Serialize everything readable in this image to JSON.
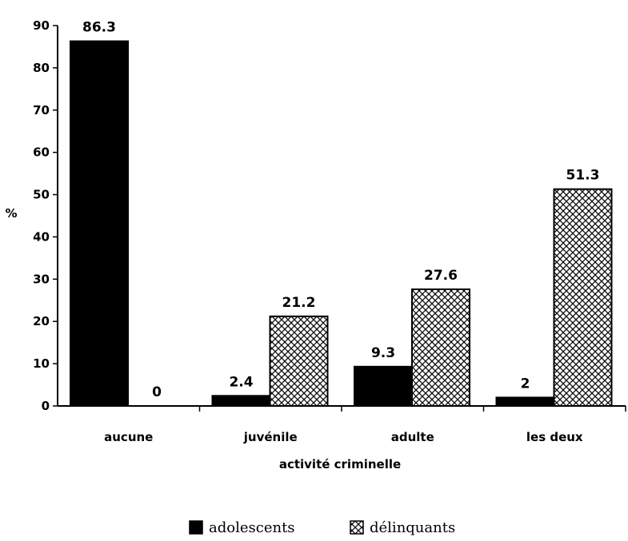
{
  "chart_data": {
    "type": "bar",
    "categories": [
      "aucune",
      "juvénile",
      "adulte",
      "les deux"
    ],
    "series": [
      {
        "name": "adolescents",
        "values": [
          86.3,
          2.4,
          9.3,
          2
        ],
        "labels": [
          "86.3",
          "2.4",
          "9.3",
          "2"
        ],
        "color": "#000000",
        "pattern": "solid"
      },
      {
        "name": "délinquants",
        "values": [
          0,
          21.2,
          27.6,
          51.3
        ],
        "labels": [
          "0",
          "21.2",
          "27.6",
          "51.3"
        ],
        "color": "#000000",
        "pattern": "crosshatch"
      }
    ],
    "xlabel": "activité criminelle",
    "ylabel": "%",
    "ylim": [
      0,
      90
    ],
    "yticks": [
      0,
      10,
      20,
      30,
      40,
      50,
      60,
      70,
      80,
      90
    ],
    "grid": false,
    "legend_position": "bottom-center"
  }
}
